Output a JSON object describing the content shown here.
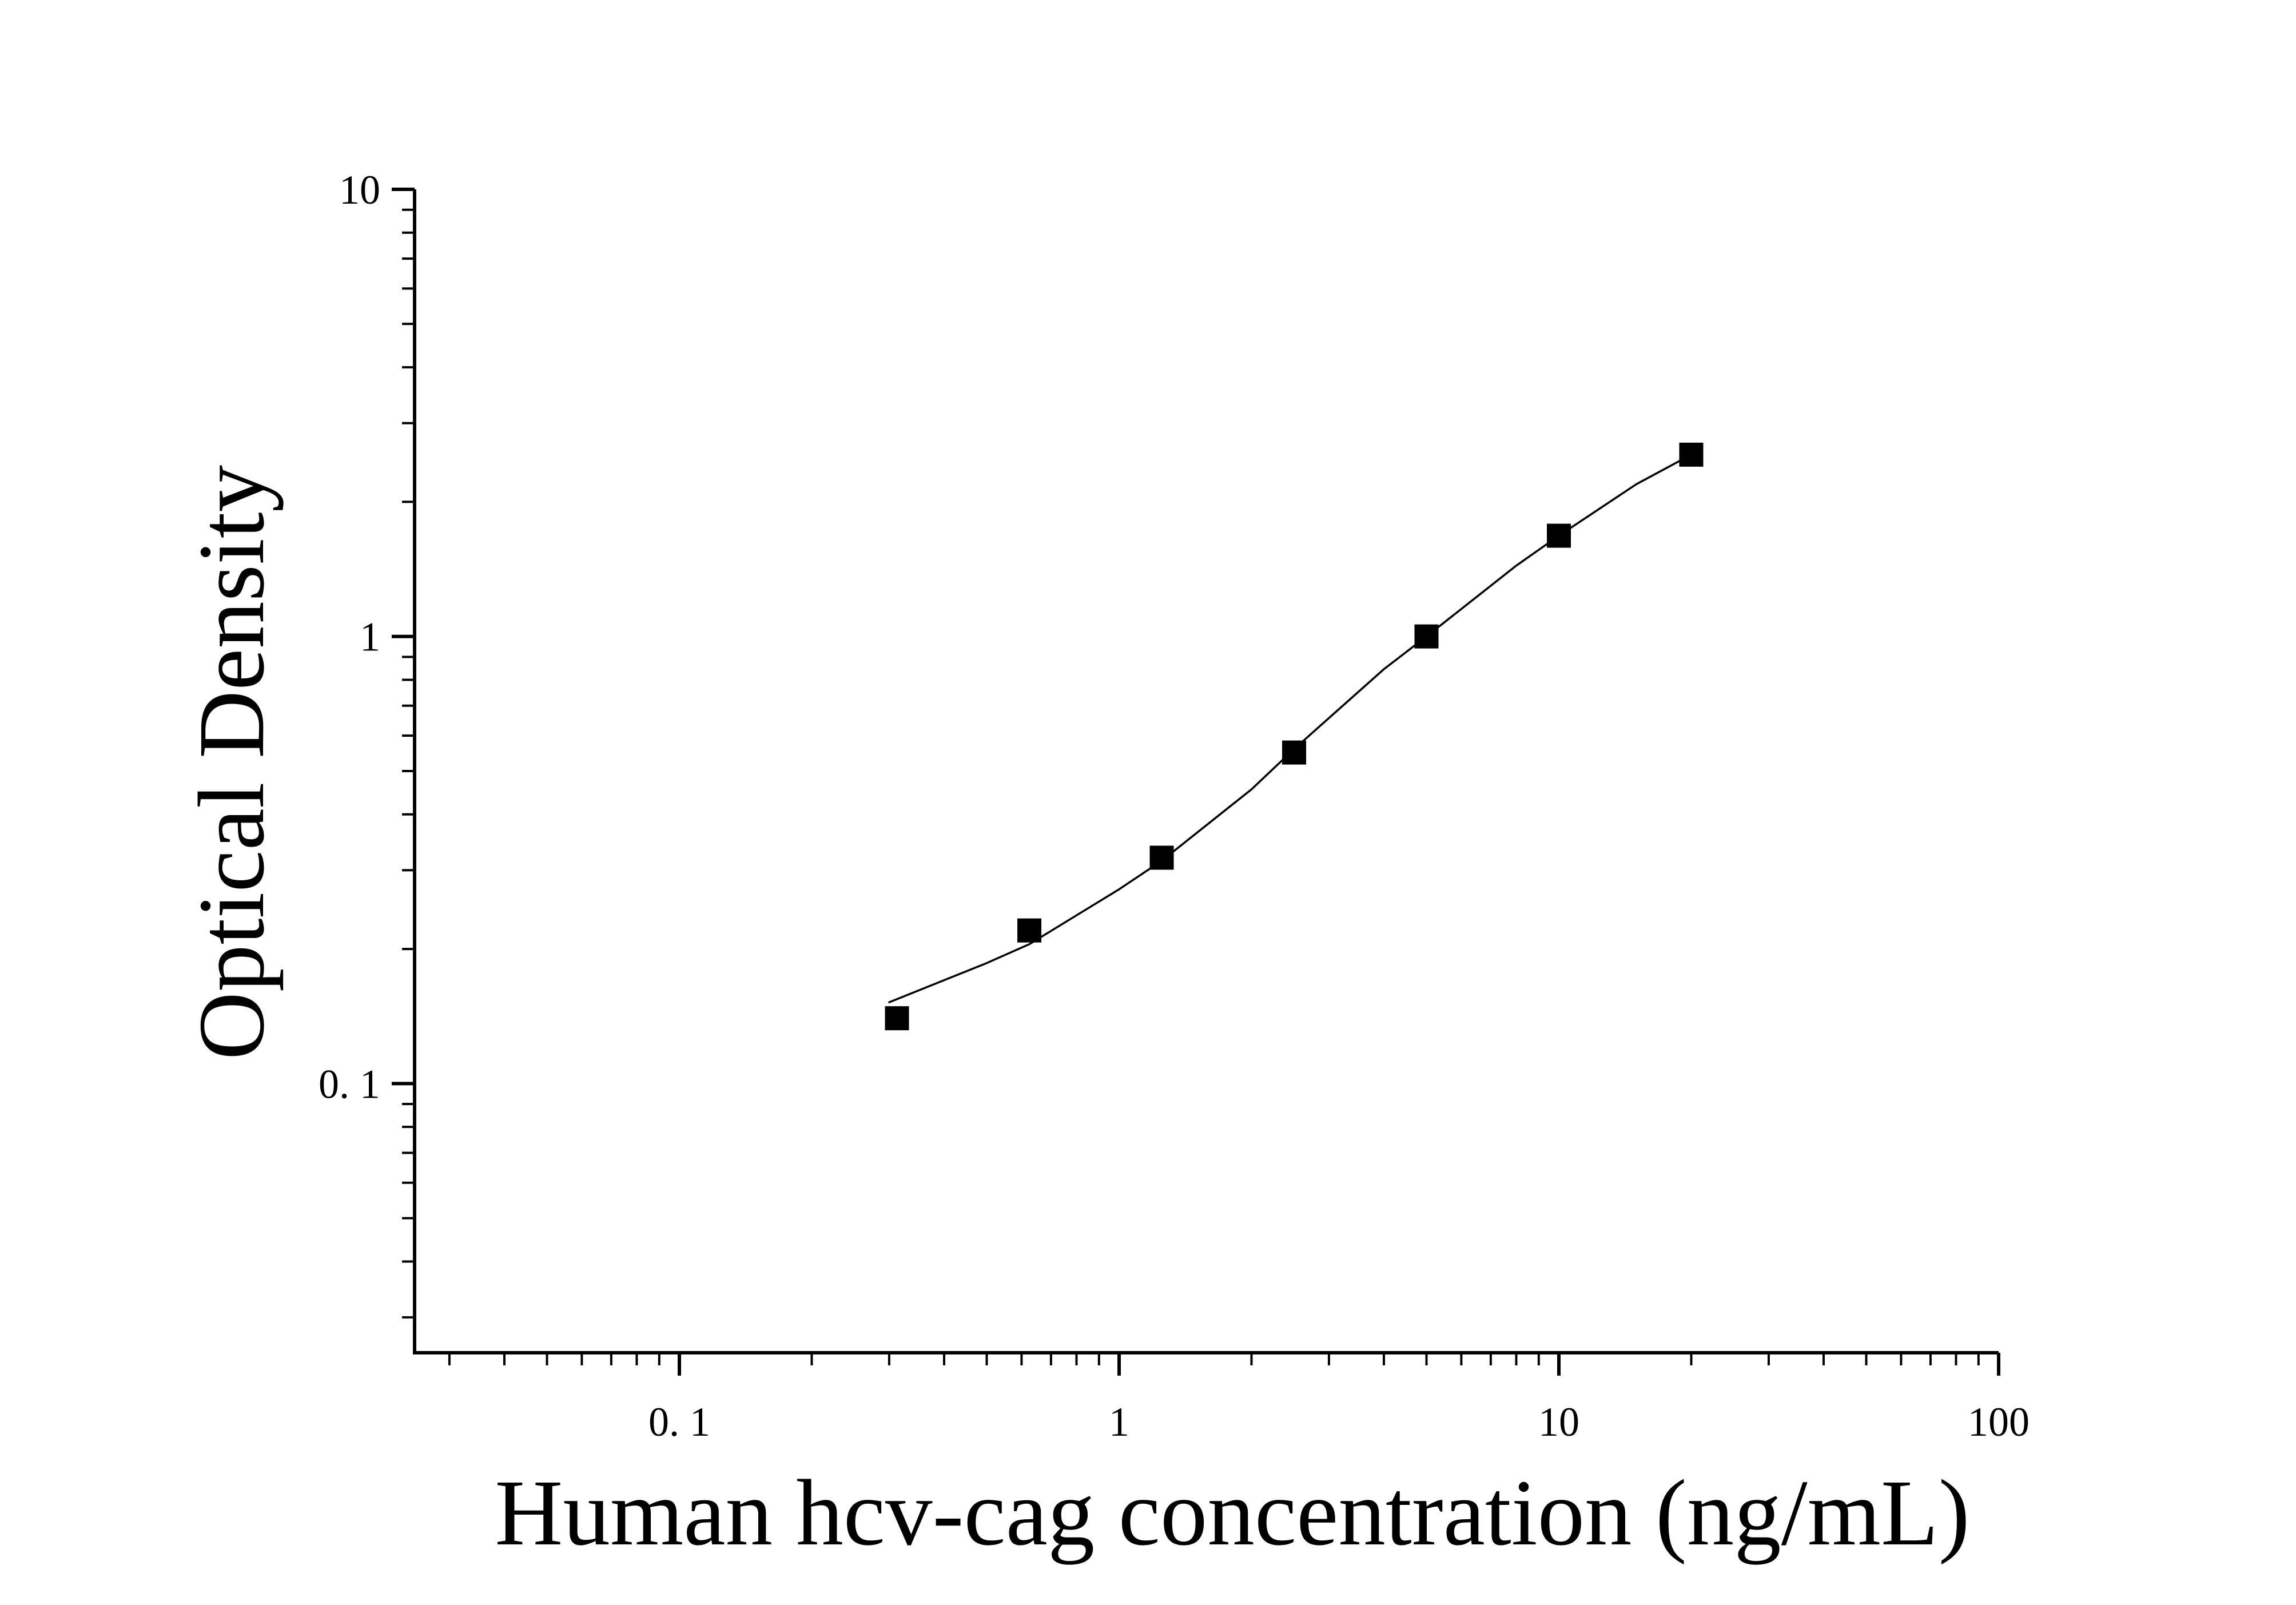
{
  "chart_data": {
    "type": "scatter",
    "title": "",
    "xlabel": "Human hcv-cag concentration (ng/mL)",
    "ylabel": "Optical Density",
    "xscale": "log",
    "yscale": "log",
    "xlim": [
      0.025,
      100
    ],
    "ylim": [
      0.025,
      10
    ],
    "x_ticks": [
      {
        "value": 0.1,
        "label": "0. 1"
      },
      {
        "value": 1,
        "label": "1"
      },
      {
        "value": 10,
        "label": "10"
      },
      {
        "value": 100,
        "label": "100"
      }
    ],
    "y_ticks": [
      {
        "value": 0.1,
        "label": "0. 1"
      },
      {
        "value": 1,
        "label": "1"
      },
      {
        "value": 10,
        "label": "10"
      }
    ],
    "grid": false,
    "legend": "none",
    "marker": "square",
    "colors": {
      "marker": "#000000",
      "curve": "#000000",
      "axis": "#000000"
    },
    "series": [
      {
        "points": [
          {
            "x": 0.3125,
            "y": 0.14
          },
          {
            "x": 0.625,
            "y": 0.22
          },
          {
            "x": 1.25,
            "y": 0.32
          },
          {
            "x": 2.5,
            "y": 0.55
          },
          {
            "x": 5,
            "y": 1.0
          },
          {
            "x": 10,
            "y": 1.68
          },
          {
            "x": 20,
            "y": 2.55
          }
        ]
      }
    ],
    "fit_curve": {
      "x": [
        0.3,
        0.5,
        0.625,
        1.0,
        1.25,
        2.0,
        2.5,
        4.0,
        5.0,
        8.0,
        10.0,
        15.0,
        20.0
      ],
      "y": [
        0.152,
        0.186,
        0.205,
        0.272,
        0.315,
        0.455,
        0.56,
        0.845,
        1.0,
        1.44,
        1.68,
        2.19,
        2.55
      ]
    }
  }
}
